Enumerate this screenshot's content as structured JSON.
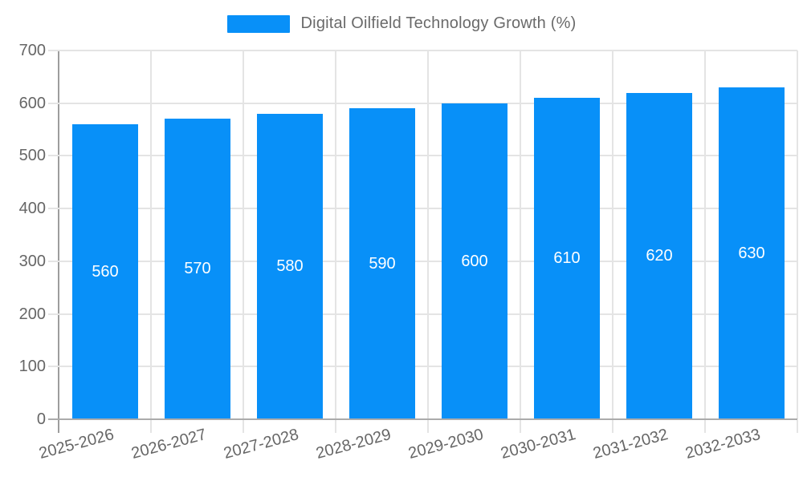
{
  "legend": {
    "label": "Digital Oilfield Technology Growth (%)"
  },
  "chart_data": {
    "type": "bar",
    "title": "Digital Oilfield Technology Growth (%)",
    "categories": [
      "2025-2026",
      "2026-2027",
      "2027-2028",
      "2028-2029",
      "2029-2030",
      "2030-2031",
      "2031-2032",
      "2032-2033"
    ],
    "values": [
      560,
      570,
      580,
      590,
      600,
      610,
      620,
      630
    ],
    "value_labels": [
      "560",
      "570",
      "580",
      "590",
      "600",
      "610",
      "620",
      "630"
    ],
    "ylim": [
      0,
      700
    ],
    "ytick_step": 100,
    "ytick_labels": [
      "0",
      "100",
      "200",
      "300",
      "400",
      "500",
      "600",
      "700"
    ],
    "grid": true,
    "legend_position": "top",
    "xlabel": "",
    "ylabel": "",
    "colors": {
      "bar": "#0890F8",
      "value_label": "#FFFFFF",
      "grid": "#E4E4E4",
      "axis_line": "#ABABAB",
      "tick_text": "#666666",
      "title_text": "#6A6A6A"
    }
  }
}
